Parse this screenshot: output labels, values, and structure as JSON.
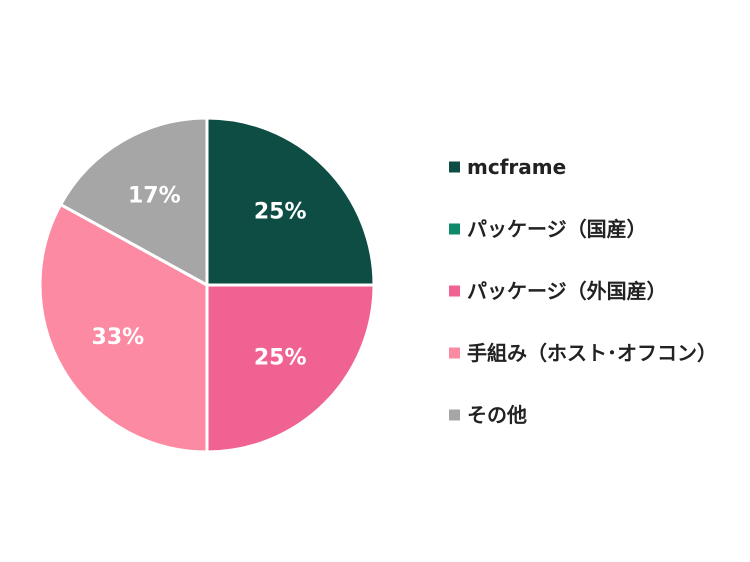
{
  "chart_data": {
    "type": "pie",
    "categories": [
      "mcframe",
      "パッケージ（国産）",
      "パッケージ（外国産）",
      "手組み（ホスト･オフコン）",
      "その他"
    ],
    "values": [
      25,
      0,
      25,
      33,
      17
    ],
    "data_labels": [
      "25%",
      "",
      "25%",
      "33%",
      "17%"
    ],
    "colors": [
      "#0e4d44",
      "#0e8a6a",
      "#f06292",
      "#fb8aa2",
      "#a6a6a6"
    ],
    "legend": "right"
  }
}
